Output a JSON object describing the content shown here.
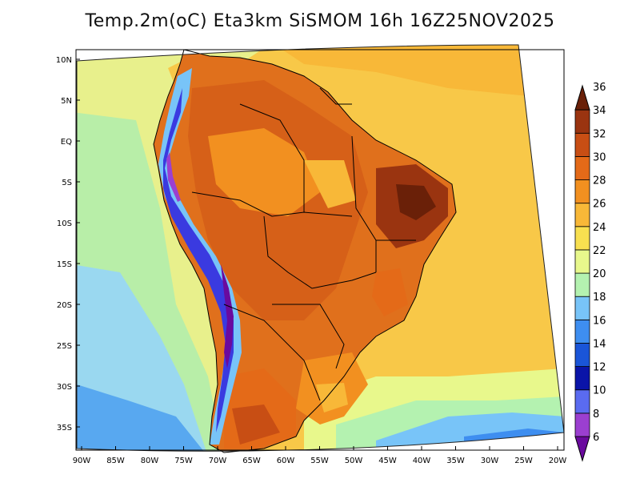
{
  "title": "Temp.2m(oC) Eta3km SiSMOM 16h 16Z25NOV2025",
  "map": {
    "lat_labels": [
      "10N",
      "5N",
      "EQ",
      "5S",
      "10S",
      "15S",
      "20S",
      "25S",
      "30S",
      "35S"
    ],
    "lon_labels": [
      "90W",
      "85W",
      "80W",
      "75W",
      "70W",
      "65W",
      "60W",
      "55W",
      "50W",
      "45W",
      "40W",
      "35W",
      "30W",
      "25W",
      "20W"
    ]
  },
  "colorbar": {
    "labels": [
      "6",
      "8",
      "10",
      "12",
      "14",
      "16",
      "18",
      "20",
      "22",
      "24",
      "26",
      "28",
      "30",
      "32",
      "34",
      "36"
    ],
    "colors": [
      "#6a0a9e",
      "#9b3fd0",
      "#5a6bf0",
      "#0a14a8",
      "#1a55d8",
      "#3e8ef0",
      "#78c4f8",
      "#b4f2b0",
      "#e8f88c",
      "#f8e050",
      "#f8b838",
      "#f29020",
      "#e46a18",
      "#c84e14",
      "#9a3410",
      "#6a2008"
    ]
  }
}
